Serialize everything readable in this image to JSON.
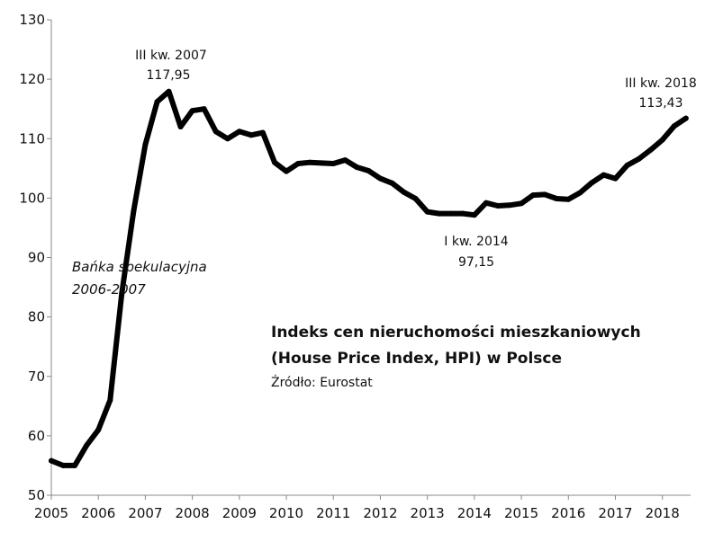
{
  "chart_data": {
    "type": "line",
    "title": "Indeks cen nieruchomości mieszkaniowych",
    "subtitle": "(House Price Index, HPI) w Polsce",
    "source": "Źródło: Eurostat",
    "xlabel": "",
    "ylabel": "",
    "xlim": [
      2005,
      2018.6
    ],
    "ylim": [
      50,
      130
    ],
    "x_ticks": [
      "2005",
      "2006",
      "2007",
      "2008",
      "2009",
      "2010",
      "2011",
      "2012",
      "2013",
      "2014",
      "2015",
      "2016",
      "2017",
      "2018"
    ],
    "y_ticks": [
      "50",
      "60",
      "70",
      "80",
      "90",
      "100",
      "110",
      "120",
      "130"
    ],
    "grid": false,
    "series": [
      {
        "name": "",
        "color": "#000000",
        "x": [
          2005.0,
          2005.25,
          2005.5,
          2005.75,
          2006.0,
          2006.25,
          2006.5,
          2006.75,
          2007.0,
          2007.25,
          2007.5,
          2007.75,
          2008.0,
          2008.25,
          2008.5,
          2008.75,
          2009.0,
          2009.25,
          2009.5,
          2009.75,
          2010.0,
          2010.25,
          2010.5,
          2010.75,
          2011.0,
          2011.25,
          2011.5,
          2011.75,
          2012.0,
          2012.25,
          2012.5,
          2012.75,
          2013.0,
          2013.25,
          2013.5,
          2013.75,
          2014.0,
          2014.25,
          2014.5,
          2014.75,
          2015.0,
          2015.25,
          2015.5,
          2015.75,
          2016.0,
          2016.25,
          2016.5,
          2016.75,
          2017.0,
          2017.25,
          2017.5,
          2017.75,
          2018.0,
          2018.25,
          2018.5
        ],
        "values": [
          55.8,
          55.0,
          55.0,
          58.4,
          61.0,
          66.0,
          84.0,
          97.8,
          109.0,
          116.2,
          117.95,
          112.0,
          114.7,
          115.0,
          111.2,
          110.0,
          111.2,
          110.6,
          111.0,
          106.0,
          104.5,
          105.8,
          106.0,
          105.9,
          105.8,
          106.4,
          105.2,
          104.6,
          103.3,
          102.5,
          101.0,
          99.9,
          97.7,
          97.4,
          97.4,
          97.4,
          97.15,
          99.2,
          98.7,
          98.8,
          99.1,
          100.5,
          100.6,
          99.9,
          99.8,
          100.9,
          102.6,
          103.9,
          103.3,
          105.5,
          106.6,
          108.1,
          109.8,
          112.1,
          113.43
        ]
      }
    ],
    "annotations": [
      {
        "label": "III kw. 2007",
        "value": "117,95",
        "x": 2007.5,
        "y": 117.95
      },
      {
        "label": "I kw. 2014",
        "value": "97,15",
        "x": 2014.0,
        "y": 97.15
      },
      {
        "label": "III kw. 2018",
        "value": "113,43",
        "x": 2018.5,
        "y": 113.43
      },
      {
        "label": "Bańka spekulacyjna",
        "value": "2006-2007",
        "x": 2005.5,
        "y": 88.5
      }
    ]
  }
}
